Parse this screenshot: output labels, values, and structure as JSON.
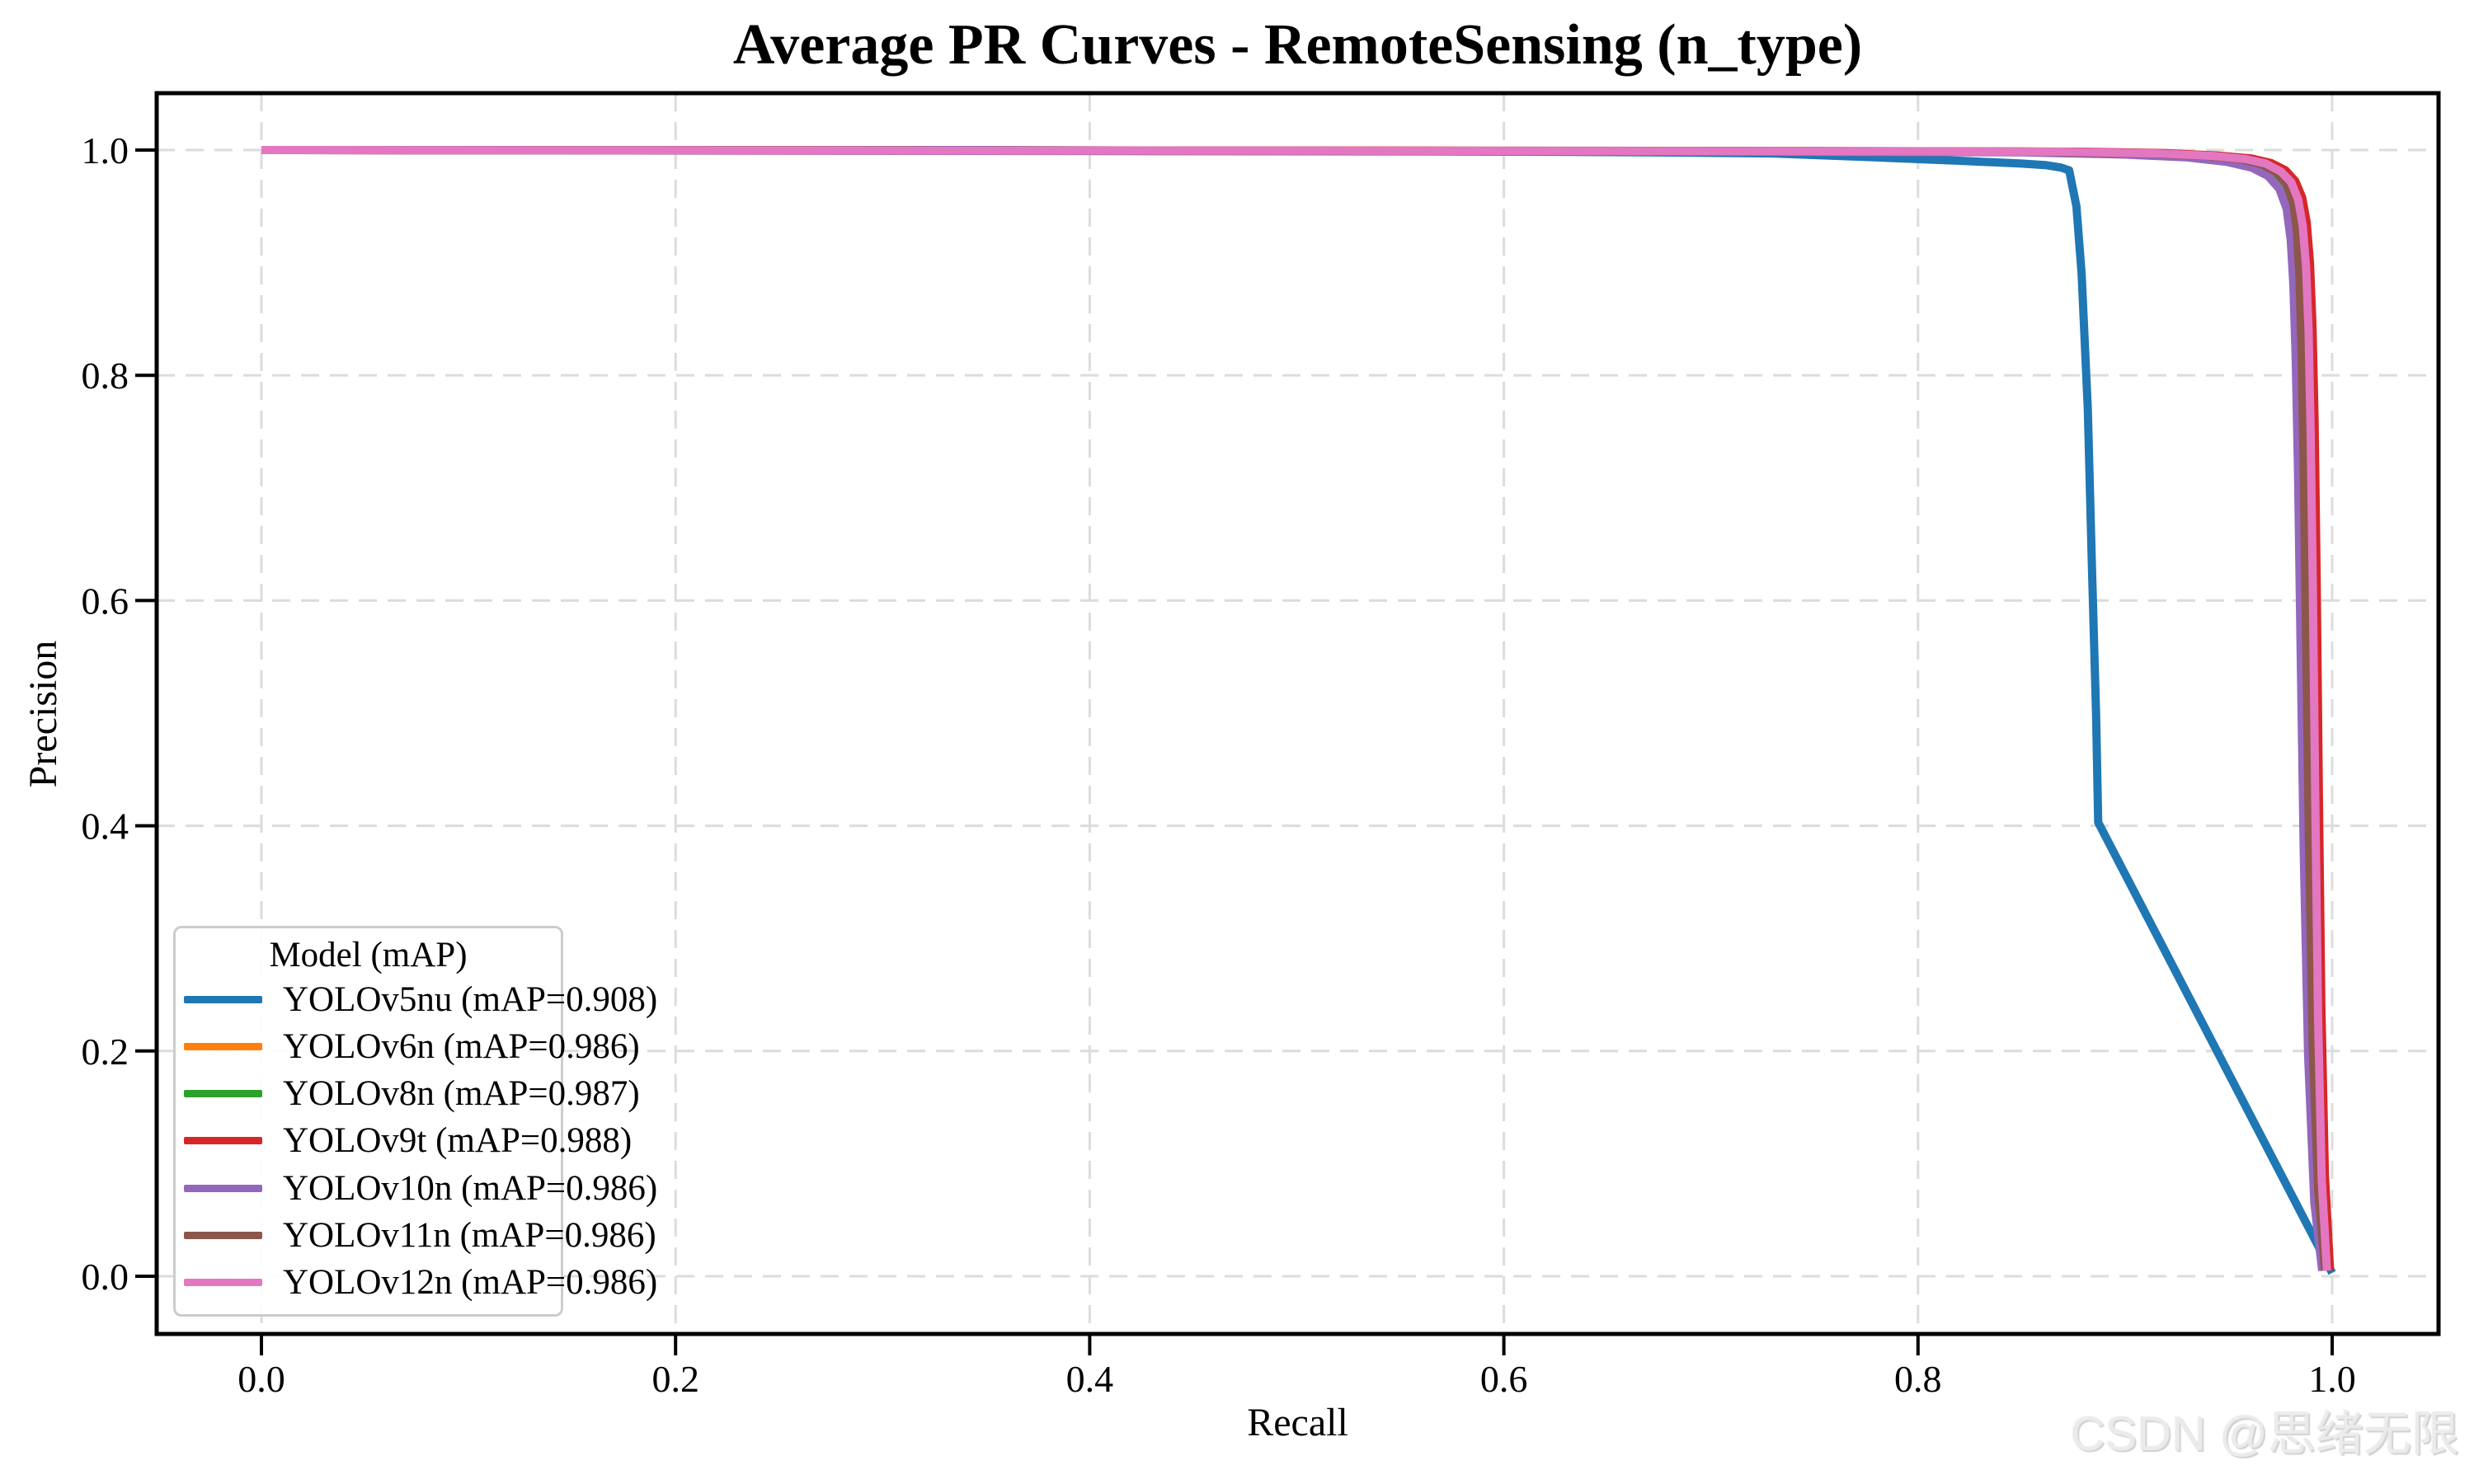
{
  "figure": {
    "title": "Average PR Curves - RemoteSensing (n_type)",
    "watermark": "CSDN @思绪无限"
  },
  "chart_data": {
    "type": "line",
    "title": "Average PR Curves - RemoteSensing (n_type)",
    "xlabel": "Recall",
    "ylabel": "Precision",
    "xlim": [
      0.0,
      1.0
    ],
    "ylim": [
      0.0,
      1.0
    ],
    "x_ticks": [
      "0.0",
      "0.2",
      "0.4",
      "0.6",
      "0.8",
      "1.0"
    ],
    "y_ticks": [
      "0.0",
      "0.2",
      "0.4",
      "0.6",
      "0.8",
      "1.0"
    ],
    "grid": true,
    "grid_style": "dashed",
    "legend": {
      "title": "Model (mAP)",
      "position": "lower left"
    },
    "series": [
      {
        "model": "YOLOv5nu",
        "map": 0.908,
        "name": "YOLOv5nu (mAP=0.908)",
        "color": "#1f77b4",
        "points": [
          [
            0,
            1.0
          ],
          [
            0.35,
            1.0
          ],
          [
            0.55,
            0.999
          ],
          [
            0.67,
            0.998
          ],
          [
            0.73,
            0.997
          ],
          [
            0.78,
            0.9935
          ],
          [
            0.82,
            0.9905
          ],
          [
            0.85,
            0.988
          ],
          [
            0.862,
            0.9865
          ],
          [
            0.869,
            0.9845
          ],
          [
            0.873,
            0.982
          ],
          [
            0.8765,
            0.95
          ],
          [
            0.879,
            0.89
          ],
          [
            0.882,
            0.77
          ],
          [
            0.884,
            0.63
          ],
          [
            0.886,
            0.5
          ],
          [
            0.887,
            0.403
          ],
          [
            1.0,
            0.003
          ]
        ]
      },
      {
        "model": "YOLOv6n",
        "map": 0.986,
        "name": "YOLOv6n (mAP=0.986)",
        "color": "#ff7f0e",
        "points": [
          [
            0,
            1.0
          ],
          [
            0.45,
            0.9995
          ],
          [
            0.72,
            0.999
          ],
          [
            0.86,
            0.9985
          ],
          [
            0.905,
            0.997
          ],
          [
            0.935,
            0.9945
          ],
          [
            0.952,
            0.991
          ],
          [
            0.963,
            0.9865
          ],
          [
            0.9705,
            0.9795
          ],
          [
            0.9755,
            0.9685
          ],
          [
            0.9788,
            0.951
          ],
          [
            0.9806,
            0.925
          ],
          [
            0.9818,
            0.885
          ],
          [
            0.9828,
            0.82
          ],
          [
            0.9838,
            0.72
          ],
          [
            0.985,
            0.56
          ],
          [
            0.9865,
            0.38
          ],
          [
            0.9885,
            0.2
          ],
          [
            0.9915,
            0.07
          ],
          [
            0.9955,
            0.005
          ]
        ]
      },
      {
        "model": "YOLOv8n",
        "map": 0.987,
        "name": "YOLOv8n (mAP=0.987)",
        "color": "#2ca02c",
        "points": [
          [
            0,
            1.0
          ],
          [
            0.45,
            0.9995
          ],
          [
            0.72,
            0.999
          ],
          [
            0.86,
            0.9985
          ],
          [
            0.91,
            0.997
          ],
          [
            0.94,
            0.9945
          ],
          [
            0.955,
            0.9915
          ],
          [
            0.965,
            0.987
          ],
          [
            0.972,
            0.98
          ],
          [
            0.977,
            0.9695
          ],
          [
            0.9801,
            0.952
          ],
          [
            0.9818,
            0.926
          ],
          [
            0.983,
            0.886
          ],
          [
            0.984,
            0.82
          ],
          [
            0.985,
            0.72
          ],
          [
            0.9862,
            0.56
          ],
          [
            0.9876,
            0.38
          ],
          [
            0.9896,
            0.2
          ],
          [
            0.9925,
            0.07
          ],
          [
            0.996,
            0.005
          ]
        ]
      },
      {
        "model": "YOLOv9t",
        "map": 0.988,
        "name": "YOLOv9t (mAP=0.988)",
        "color": "#d62728",
        "points": [
          [
            0,
            1.0
          ],
          [
            0.45,
            0.9996
          ],
          [
            0.75,
            0.9992
          ],
          [
            0.88,
            0.9985
          ],
          [
            0.92,
            0.9972
          ],
          [
            0.9455,
            0.995
          ],
          [
            0.961,
            0.9925
          ],
          [
            0.9705,
            0.9885
          ],
          [
            0.9775,
            0.982
          ],
          [
            0.9822,
            0.9725
          ],
          [
            0.9855,
            0.958
          ],
          [
            0.9877,
            0.936
          ],
          [
            0.9893,
            0.9
          ],
          [
            0.9905,
            0.845
          ],
          [
            0.9915,
            0.76
          ],
          [
            0.9925,
            0.62
          ],
          [
            0.9935,
            0.44
          ],
          [
            0.9948,
            0.24
          ],
          [
            0.9965,
            0.09
          ],
          [
            0.999,
            0.005
          ]
        ]
      },
      {
        "model": "YOLOv10n",
        "map": 0.986,
        "name": "YOLOv10n (mAP=0.986)",
        "color": "#9467bd",
        "points": [
          [
            0,
            1.0
          ],
          [
            0.45,
            0.999
          ],
          [
            0.72,
            0.9985
          ],
          [
            0.85,
            0.998
          ],
          [
            0.9,
            0.996
          ],
          [
            0.93,
            0.9935
          ],
          [
            0.949,
            0.9895
          ],
          [
            0.961,
            0.9845
          ],
          [
            0.969,
            0.977
          ],
          [
            0.9745,
            0.9655
          ],
          [
            0.978,
            0.948
          ],
          [
            0.98,
            0.92
          ],
          [
            0.9813,
            0.88
          ],
          [
            0.9824,
            0.815
          ],
          [
            0.9835,
            0.715
          ],
          [
            0.9848,
            0.555
          ],
          [
            0.9863,
            0.375
          ],
          [
            0.9884,
            0.195
          ],
          [
            0.9914,
            0.065
          ],
          [
            0.9952,
            0.005
          ]
        ]
      },
      {
        "model": "YOLOv11n",
        "map": 0.986,
        "name": "YOLOv11n (mAP=0.986)",
        "color": "#8c564b",
        "points": [
          [
            0,
            1.0
          ],
          [
            0.45,
            0.9995
          ],
          [
            0.72,
            0.999
          ],
          [
            0.86,
            0.9985
          ],
          [
            0.91,
            0.997
          ],
          [
            0.94,
            0.9948
          ],
          [
            0.956,
            0.9918
          ],
          [
            0.966,
            0.9875
          ],
          [
            0.973,
            0.9805
          ],
          [
            0.978,
            0.97
          ],
          [
            0.9812,
            0.953
          ],
          [
            0.983,
            0.928
          ],
          [
            0.9842,
            0.888
          ],
          [
            0.9852,
            0.825
          ],
          [
            0.9862,
            0.725
          ],
          [
            0.9874,
            0.565
          ],
          [
            0.9888,
            0.385
          ],
          [
            0.9906,
            0.205
          ],
          [
            0.9933,
            0.075
          ],
          [
            0.9966,
            0.005
          ]
        ]
      },
      {
        "model": "YOLOv12n",
        "map": 0.986,
        "name": "YOLOv12n (mAP=0.986)",
        "color": "#e377c2",
        "points": [
          [
            0,
            1.0
          ],
          [
            0.45,
            0.9995
          ],
          [
            0.73,
            0.999
          ],
          [
            0.87,
            0.9985
          ],
          [
            0.915,
            0.997
          ],
          [
            0.9425,
            0.9948
          ],
          [
            0.958,
            0.992
          ],
          [
            0.968,
            0.988
          ],
          [
            0.9752,
            0.981
          ],
          [
            0.9802,
            0.9715
          ],
          [
            0.9836,
            0.956
          ],
          [
            0.9858,
            0.933
          ],
          [
            0.9874,
            0.896
          ],
          [
            0.9886,
            0.84
          ],
          [
            0.9896,
            0.75
          ],
          [
            0.9907,
            0.61
          ],
          [
            0.9918,
            0.43
          ],
          [
            0.9932,
            0.23
          ],
          [
            0.995,
            0.085
          ],
          [
            0.9975,
            0.005
          ]
        ]
      }
    ],
    "style": {
      "line_width": 10,
      "grid_color": "#dcdcdc",
      "spine_color": "#000000",
      "background": "#ffffff"
    }
  }
}
